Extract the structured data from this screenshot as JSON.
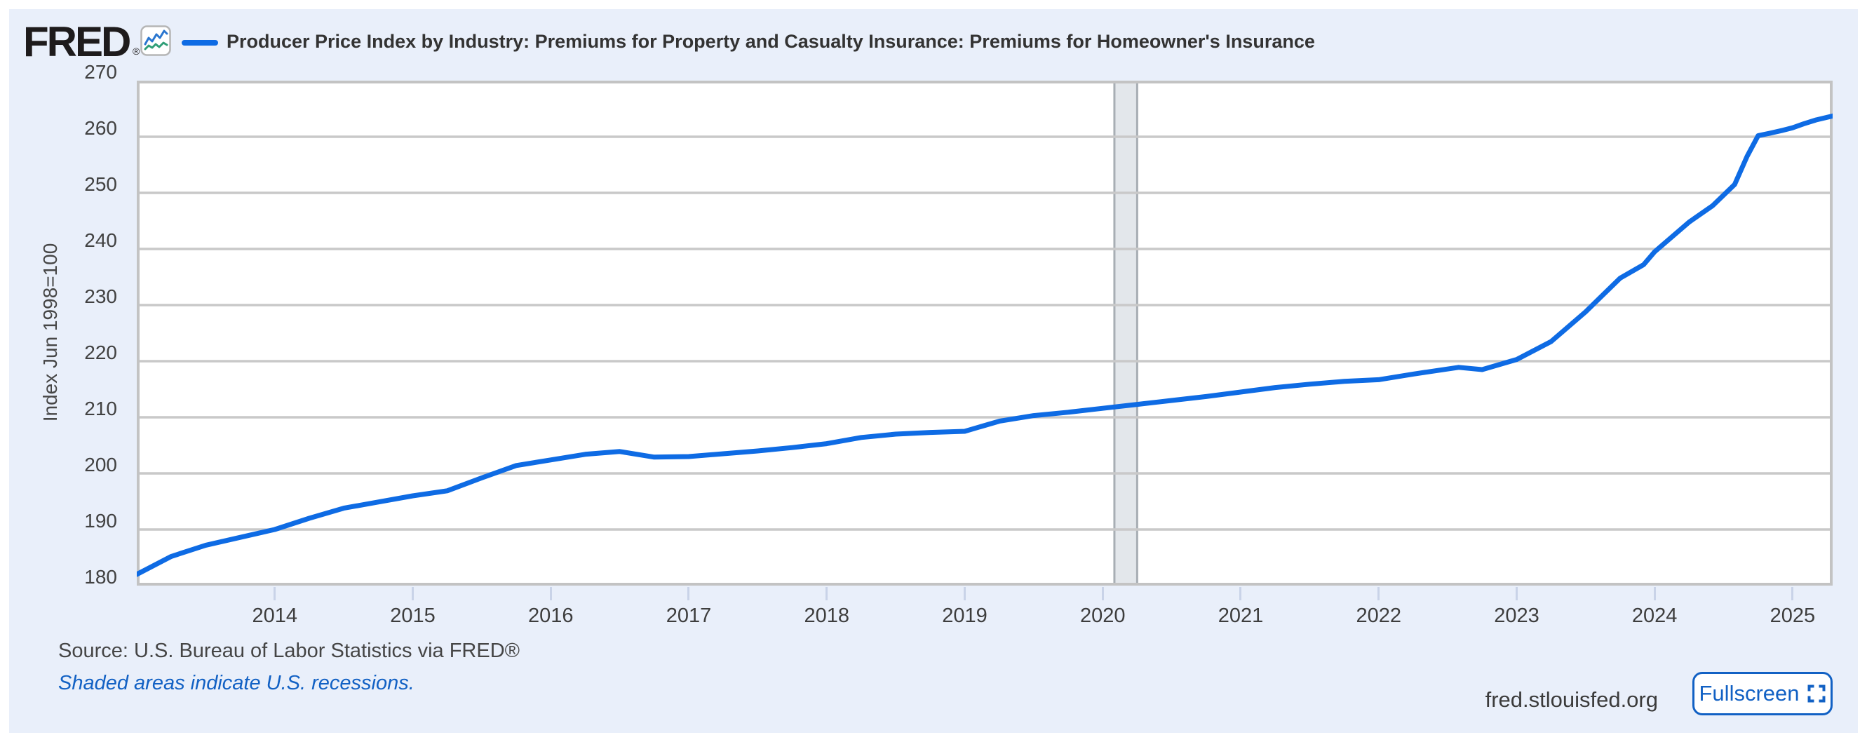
{
  "header": {
    "logo_text": "FRED",
    "logo_registered": "®",
    "title": "Producer Price Index by Industry: Premiums for Property and Casualty Insurance: Premiums for Homeowner's Insurance"
  },
  "footer": {
    "source": "Source: U.S. Bureau of Labor Statistics via FRED®",
    "recession_note": "Shaded areas indicate U.S. recessions.",
    "site": "fred.stlouisfed.org",
    "fullscreen_label": "Fullscreen"
  },
  "colors": {
    "line": "#0e6be4",
    "panel_bg": "#e9effa",
    "plot_border": "#c3c3c3",
    "gridline": "#c9c9c9",
    "recession_fill": "#e3e7eb",
    "recession_edge": "#a8aeb4",
    "link_blue": "#1261c4",
    "logo_mark_blue": "#2a76cf",
    "logo_mark_green": "#2f9e77"
  },
  "chart_data": {
    "type": "line",
    "title": "Producer Price Index by Industry: Premiums for Property and Casualty Insurance: Premiums for Homeowner's Insurance",
    "xlabel": "",
    "ylabel": "Index Jun 1998=100",
    "xlim": [
      2013.0,
      2025.29
    ],
    "ylim": [
      180,
      270
    ],
    "x_ticks": [
      2014,
      2015,
      2016,
      2017,
      2018,
      2019,
      2020,
      2021,
      2022,
      2023,
      2024,
      2025
    ],
    "y_ticks": [
      180,
      190,
      200,
      210,
      220,
      230,
      240,
      250,
      260,
      270
    ],
    "grid": true,
    "legend_position": "top-left",
    "recessions": [
      [
        2020.085,
        2020.25
      ]
    ],
    "series": [
      {
        "name": "Premiums for Homeowner's Insurance",
        "points": [
          [
            2013.0,
            182.0
          ],
          [
            2013.25,
            185.2
          ],
          [
            2013.5,
            187.2
          ],
          [
            2013.75,
            188.6
          ],
          [
            2014.0,
            190.0
          ],
          [
            2014.25,
            192.0
          ],
          [
            2014.5,
            193.8
          ],
          [
            2014.75,
            194.9
          ],
          [
            2015.0,
            196.0
          ],
          [
            2015.25,
            196.9
          ],
          [
            2015.5,
            199.2
          ],
          [
            2015.75,
            201.4
          ],
          [
            2016.0,
            202.4
          ],
          [
            2016.25,
            203.4
          ],
          [
            2016.5,
            203.9
          ],
          [
            2016.75,
            202.9
          ],
          [
            2017.0,
            203.0
          ],
          [
            2017.25,
            203.5
          ],
          [
            2017.5,
            204.0
          ],
          [
            2017.75,
            204.6
          ],
          [
            2018.0,
            205.3
          ],
          [
            2018.25,
            206.4
          ],
          [
            2018.5,
            207.0
          ],
          [
            2018.75,
            207.3
          ],
          [
            2019.0,
            207.5
          ],
          [
            2019.25,
            209.3
          ],
          [
            2019.5,
            210.3
          ],
          [
            2019.75,
            210.9
          ],
          [
            2020.0,
            211.6
          ],
          [
            2020.25,
            212.3
          ],
          [
            2020.5,
            213.0
          ],
          [
            2020.75,
            213.7
          ],
          [
            2021.0,
            214.5
          ],
          [
            2021.25,
            215.3
          ],
          [
            2021.5,
            215.9
          ],
          [
            2021.75,
            216.4
          ],
          [
            2022.0,
            216.7
          ],
          [
            2022.25,
            217.7
          ],
          [
            2022.58,
            218.9
          ],
          [
            2022.75,
            218.5
          ],
          [
            2023.0,
            220.3
          ],
          [
            2023.25,
            223.5
          ],
          [
            2023.5,
            228.8
          ],
          [
            2023.75,
            234.8
          ],
          [
            2023.92,
            237.2
          ],
          [
            2024.0,
            239.5
          ],
          [
            2024.25,
            244.8
          ],
          [
            2024.42,
            247.7
          ],
          [
            2024.58,
            251.5
          ],
          [
            2024.67,
            256.5
          ],
          [
            2024.75,
            260.2
          ],
          [
            2024.83,
            260.6
          ],
          [
            2024.92,
            261.1
          ],
          [
            2025.0,
            261.6
          ],
          [
            2025.08,
            262.3
          ],
          [
            2025.17,
            263.0
          ],
          [
            2025.29,
            263.7
          ]
        ]
      }
    ]
  }
}
